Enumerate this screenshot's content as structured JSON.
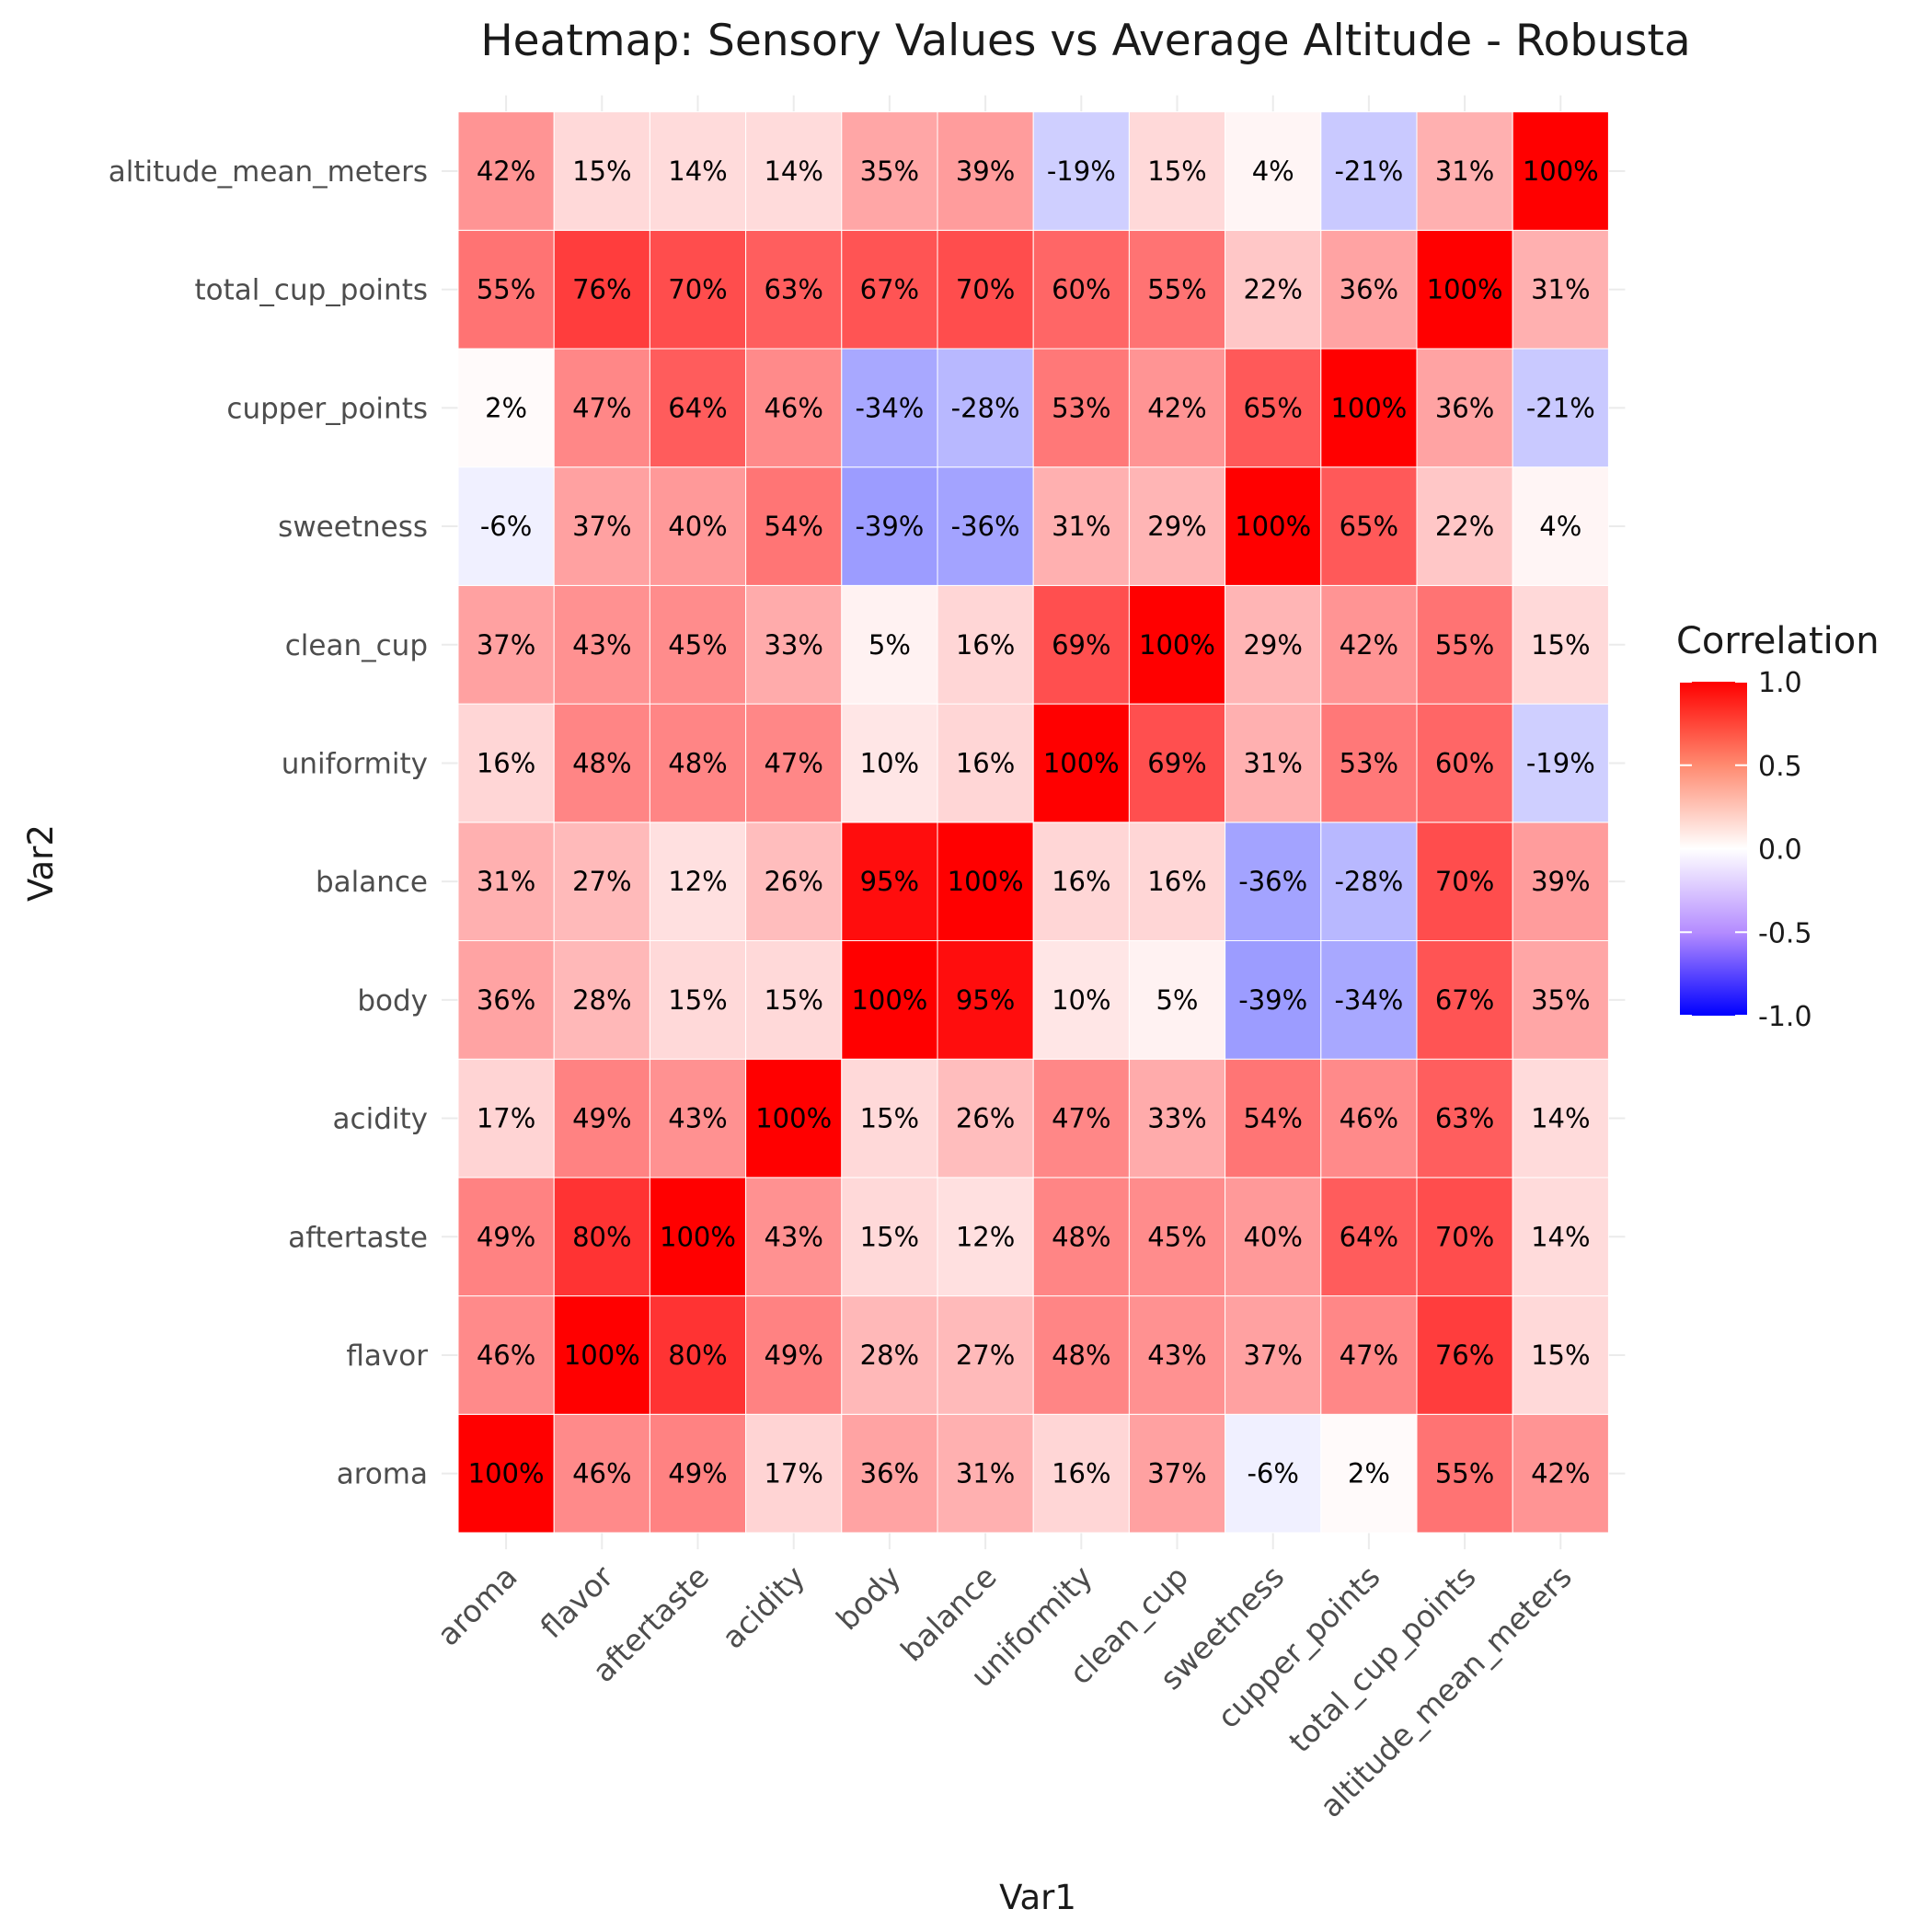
{
  "chart_data": {
    "type": "heatmap",
    "title": "Heatmap: Sensory Values vs Average Altitude - Robusta",
    "xlabel": "Var1",
    "ylabel": "Var2",
    "x_categories": [
      "aroma",
      "flavor",
      "aftertaste",
      "acidity",
      "body",
      "balance",
      "uniformity",
      "clean_cup",
      "sweetness",
      "cupper_points",
      "total_cup_points",
      "altitude_mean_meters"
    ],
    "y_categories": [
      "aroma",
      "flavor",
      "aftertaste",
      "acidity",
      "body",
      "balance",
      "uniformity",
      "clean_cup",
      "sweetness",
      "cupper_points",
      "total_cup_points",
      "altitude_mean_meters"
    ],
    "values": [
      [
        100,
        46,
        49,
        17,
        36,
        31,
        16,
        37,
        -6,
        2,
        55,
        42
      ],
      [
        46,
        100,
        80,
        49,
        28,
        27,
        48,
        43,
        37,
        47,
        76,
        15
      ],
      [
        49,
        80,
        100,
        43,
        15,
        12,
        48,
        45,
        40,
        64,
        70,
        14
      ],
      [
        17,
        49,
        43,
        100,
        15,
        26,
        47,
        33,
        54,
        46,
        63,
        14
      ],
      [
        36,
        28,
        15,
        15,
        100,
        95,
        10,
        5,
        -39,
        -34,
        67,
        35
      ],
      [
        31,
        27,
        12,
        26,
        95,
        100,
        16,
        16,
        -36,
        -28,
        70,
        39
      ],
      [
        16,
        48,
        48,
        47,
        10,
        16,
        100,
        69,
        31,
        53,
        60,
        -19
      ],
      [
        37,
        43,
        45,
        33,
        5,
        16,
        69,
        100,
        29,
        42,
        55,
        15
      ],
      [
        -6,
        37,
        40,
        54,
        -39,
        -36,
        31,
        29,
        100,
        65,
        22,
        4
      ],
      [
        2,
        47,
        64,
        46,
        -34,
        -28,
        53,
        42,
        65,
        100,
        36,
        -21
      ],
      [
        55,
        76,
        70,
        63,
        67,
        70,
        60,
        55,
        22,
        36,
        100,
        31
      ],
      [
        42,
        15,
        14,
        14,
        35,
        39,
        -19,
        15,
        4,
        -21,
        31,
        100
      ]
    ],
    "value_unit": "%",
    "legend": {
      "title": "Correlation",
      "ticks": [
        "1.0",
        "0.5",
        "0.0",
        "-0.5",
        "-1.0"
      ],
      "range": [
        -1.0,
        1.0
      ],
      "placement": "right"
    },
    "colors": {
      "low": "#0000ff",
      "mid": "#ffffff",
      "high": "#ff0000"
    },
    "grid": true
  }
}
